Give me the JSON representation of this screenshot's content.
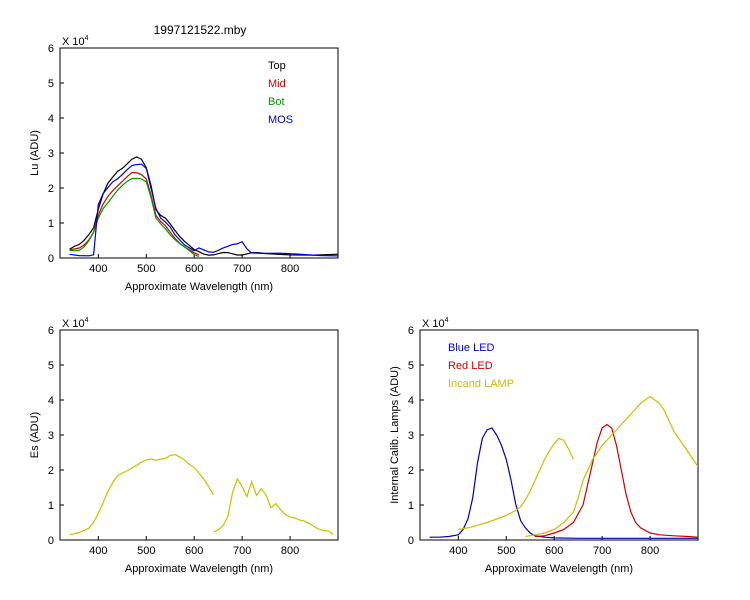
{
  "title": "1997121522.mby",
  "colors": {
    "top": "#000000",
    "mid": "#cc0000",
    "bot": "#009900",
    "mos": "#0000cc",
    "blue_led": "#0000bb",
    "red_led": "#cc0000",
    "incand": "#c8c000"
  },
  "chart_data": [
    {
      "id": "lu",
      "type": "line",
      "xlabel": "Approximate Wavelength (nm)",
      "ylabel": "Lu (ADU)",
      "exponent_base": "X 10",
      "exponent_power": "4",
      "xlim": [
        320,
        900
      ],
      "ylim": [
        0,
        6
      ],
      "xticks": [
        400,
        500,
        600,
        700,
        800
      ],
      "yticks": [
        0,
        1,
        2,
        3,
        4,
        5,
        6
      ],
      "legend_position": "top-right",
      "series": [
        {
          "name": "Top",
          "color": "#000000",
          "x": [
            340,
            350,
            360,
            370,
            380,
            390,
            400,
            410,
            420,
            430,
            440,
            450,
            460,
            470,
            480,
            490,
            500,
            510,
            520,
            530,
            540,
            550,
            560,
            570,
            580,
            590,
            600,
            610,
            620,
            630,
            640,
            650,
            660,
            670,
            680,
            690,
            700,
            710,
            720,
            730,
            750,
            800,
            850,
            900
          ],
          "y": [
            0.25,
            0.3,
            0.35,
            0.5,
            0.7,
            0.9,
            1.4,
            1.8,
            2.1,
            2.3,
            2.5,
            2.6,
            2.7,
            2.8,
            2.85,
            2.8,
            2.6,
            2.1,
            1.4,
            1.2,
            1.1,
            0.95,
            0.8,
            0.65,
            0.5,
            0.35,
            0.2,
            0.15,
            0.12,
            0.12,
            0.12,
            0.12,
            0.12,
            0.12,
            0.12,
            0.12,
            0.12,
            0.12,
            0.12,
            0.12,
            0.12,
            0.12,
            0.12,
            0.12
          ]
        },
        {
          "name": "Mid",
          "color": "#cc0000",
          "x": [
            340,
            350,
            360,
            370,
            380,
            390,
            400,
            410,
            420,
            430,
            440,
            450,
            460,
            470,
            480,
            490,
            500,
            510,
            520,
            530,
            540,
            550,
            560,
            570,
            580,
            590,
            600,
            610
          ],
          "y": [
            0.2,
            0.22,
            0.28,
            0.4,
            0.55,
            0.75,
            1.2,
            1.5,
            1.75,
            1.95,
            2.1,
            2.2,
            2.3,
            2.4,
            2.42,
            2.4,
            2.3,
            1.8,
            1.2,
            1.0,
            0.9,
            0.75,
            0.6,
            0.45,
            0.3,
            0.2,
            0.12,
            0.1
          ]
        },
        {
          "name": "Bot",
          "color": "#009900",
          "x": [
            340,
            350,
            360,
            370,
            380,
            390,
            400,
            410,
            420,
            430,
            440,
            450,
            460,
            470,
            480,
            490,
            500,
            510,
            520,
            530,
            540,
            550,
            560,
            570,
            580,
            590,
            600,
            610
          ],
          "y": [
            0.18,
            0.2,
            0.25,
            0.35,
            0.5,
            0.7,
            1.1,
            1.4,
            1.6,
            1.8,
            1.95,
            2.05,
            2.15,
            2.25,
            2.3,
            2.3,
            2.2,
            1.7,
            1.1,
            0.95,
            0.85,
            0.7,
            0.55,
            0.4,
            0.28,
            0.18,
            0.1,
            0.08
          ]
        },
        {
          "name": "MOS",
          "color": "#0000cc",
          "x": [
            340,
            360,
            380,
            390,
            400,
            410,
            420,
            430,
            440,
            450,
            460,
            470,
            480,
            490,
            500,
            510,
            520,
            530,
            540,
            550,
            560,
            580,
            600,
            610,
            620,
            630,
            640,
            650,
            660,
            670,
            680,
            690,
            700,
            710,
            720,
            740,
            780,
            820,
            860,
            900
          ],
          "y": [
            0.1,
            0.1,
            0.1,
            0.1,
            1.5,
            1.8,
            2.0,
            2.2,
            2.3,
            2.4,
            2.5,
            2.6,
            2.65,
            2.7,
            2.6,
            2.0,
            1.4,
            1.1,
            1.0,
            0.9,
            0.7,
            0.4,
            0.2,
            0.25,
            0.2,
            0.18,
            0.2,
            0.25,
            0.28,
            0.3,
            0.35,
            0.4,
            0.5,
            0.3,
            0.15,
            0.1,
            0.1,
            0.1,
            0.1,
            0.1
          ]
        }
      ]
    },
    {
      "id": "es",
      "type": "line",
      "xlabel": "Approximate Wavelength (nm)",
      "ylabel": "Es (ADU)",
      "exponent_base": "X 10",
      "exponent_power": "4",
      "xlim": [
        320,
        900
      ],
      "ylim": [
        0,
        6
      ],
      "xticks": [
        400,
        500,
        600,
        700,
        800
      ],
      "yticks": [
        0,
        1,
        2,
        3,
        4,
        5,
        6
      ],
      "series": [
        {
          "color": "#c8c000",
          "x": [
            340,
            360,
            380,
            390,
            400,
            410,
            420,
            430,
            440,
            450,
            460,
            470,
            480,
            490,
            500,
            510,
            520,
            530,
            540,
            550,
            560,
            570,
            580,
            590,
            600,
            610,
            620,
            630,
            640
          ],
          "y": [
            0.15,
            0.18,
            0.3,
            0.5,
            0.8,
            1.1,
            1.4,
            1.6,
            1.8,
            1.9,
            2.0,
            2.1,
            2.15,
            2.2,
            2.25,
            2.3,
            2.3,
            2.35,
            2.35,
            2.4,
            2.4,
            2.35,
            2.3,
            2.2,
            2.1,
            1.9,
            1.7,
            1.5,
            1.3
          ]
        },
        {
          "color": "#c8c000",
          "x": [
            640,
            650,
            660,
            670,
            680,
            690,
            700,
            710,
            720,
            730,
            740,
            750,
            760,
            770,
            780,
            790,
            800,
            810,
            820,
            830,
            840,
            850,
            860,
            870,
            880,
            890
          ],
          "y": [
            0.2,
            0.25,
            0.4,
            0.7,
            1.4,
            1.75,
            1.5,
            1.2,
            1.65,
            1.3,
            1.5,
            1.3,
            0.9,
            1.0,
            0.85,
            0.75,
            0.7,
            0.65,
            0.55,
            0.5,
            0.45,
            0.4,
            0.35,
            0.3,
            0.25,
            0.12
          ]
        }
      ]
    },
    {
      "id": "lamps",
      "type": "line",
      "xlabel": "Approximate Wavelength (nm)",
      "ylabel": "Internal Calib. Lamps (ADU)",
      "exponent_base": "X 10",
      "exponent_power": "4",
      "xlim": [
        320,
        900
      ],
      "ylim": [
        0,
        6
      ],
      "xticks": [
        400,
        500,
        600,
        700,
        800
      ],
      "yticks": [
        0,
        1,
        2,
        3,
        4,
        5,
        6
      ],
      "legend_position": "top-left",
      "series": [
        {
          "name": "Blue LED",
          "color": "#0000bb",
          "x": [
            340,
            360,
            380,
            400,
            410,
            420,
            430,
            440,
            450,
            460,
            470,
            480,
            490,
            500,
            510,
            520,
            530,
            540,
            550,
            560,
            580,
            600,
            650,
            700,
            750,
            800,
            850,
            900
          ],
          "y": [
            0.08,
            0.08,
            0.1,
            0.15,
            0.3,
            0.6,
            1.2,
            2.2,
            2.9,
            3.15,
            3.2,
            3.0,
            2.7,
            2.3,
            1.7,
            1.0,
            0.55,
            0.35,
            0.2,
            0.12,
            0.08,
            0.06,
            0.05,
            0.05,
            0.05,
            0.05,
            0.05,
            0.05
          ]
        },
        {
          "name": "Red LED",
          "color": "#cc0000",
          "x": [
            560,
            580,
            600,
            620,
            640,
            660,
            670,
            680,
            690,
            700,
            710,
            720,
            730,
            740,
            750,
            760,
            770,
            780,
            800,
            820,
            850,
            880,
            900
          ],
          "y": [
            0.1,
            0.12,
            0.2,
            0.3,
            0.5,
            1.0,
            1.6,
            2.2,
            2.8,
            3.2,
            3.3,
            3.2,
            2.7,
            2.0,
            1.3,
            0.8,
            0.5,
            0.35,
            0.2,
            0.15,
            0.12,
            0.1,
            0.08
          ]
        },
        {
          "name": "Incand LAMP",
          "color": "#c8c000",
          "x": [
            400,
            420,
            440,
            460,
            480,
            500,
            520,
            530,
            540,
            550,
            560,
            570,
            580,
            590,
            600,
            610,
            620,
            630,
            640
          ],
          "y": [
            0.3,
            0.35,
            0.42,
            0.5,
            0.6,
            0.7,
            0.85,
            0.95,
            1.15,
            1.4,
            1.7,
            2.0,
            2.3,
            2.55,
            2.75,
            2.9,
            2.85,
            2.6,
            2.3
          ]
        },
        {
          "color": "#c8c000",
          "x": [
            540,
            560,
            580,
            600,
            620,
            640,
            650,
            660,
            670,
            680,
            690,
            700,
            720,
            740,
            760,
            780,
            790,
            800,
            810,
            820,
            830,
            840,
            850,
            860,
            870,
            880,
            890,
            900
          ],
          "y": [
            0.1,
            0.15,
            0.2,
            0.3,
            0.5,
            0.8,
            1.2,
            1.7,
            2.0,
            2.3,
            2.5,
            2.7,
            3.0,
            3.3,
            3.6,
            3.9,
            4.0,
            4.1,
            4.0,
            3.9,
            3.7,
            3.4,
            3.1,
            2.9,
            2.7,
            2.5,
            2.3,
            2.1
          ]
        }
      ]
    }
  ]
}
